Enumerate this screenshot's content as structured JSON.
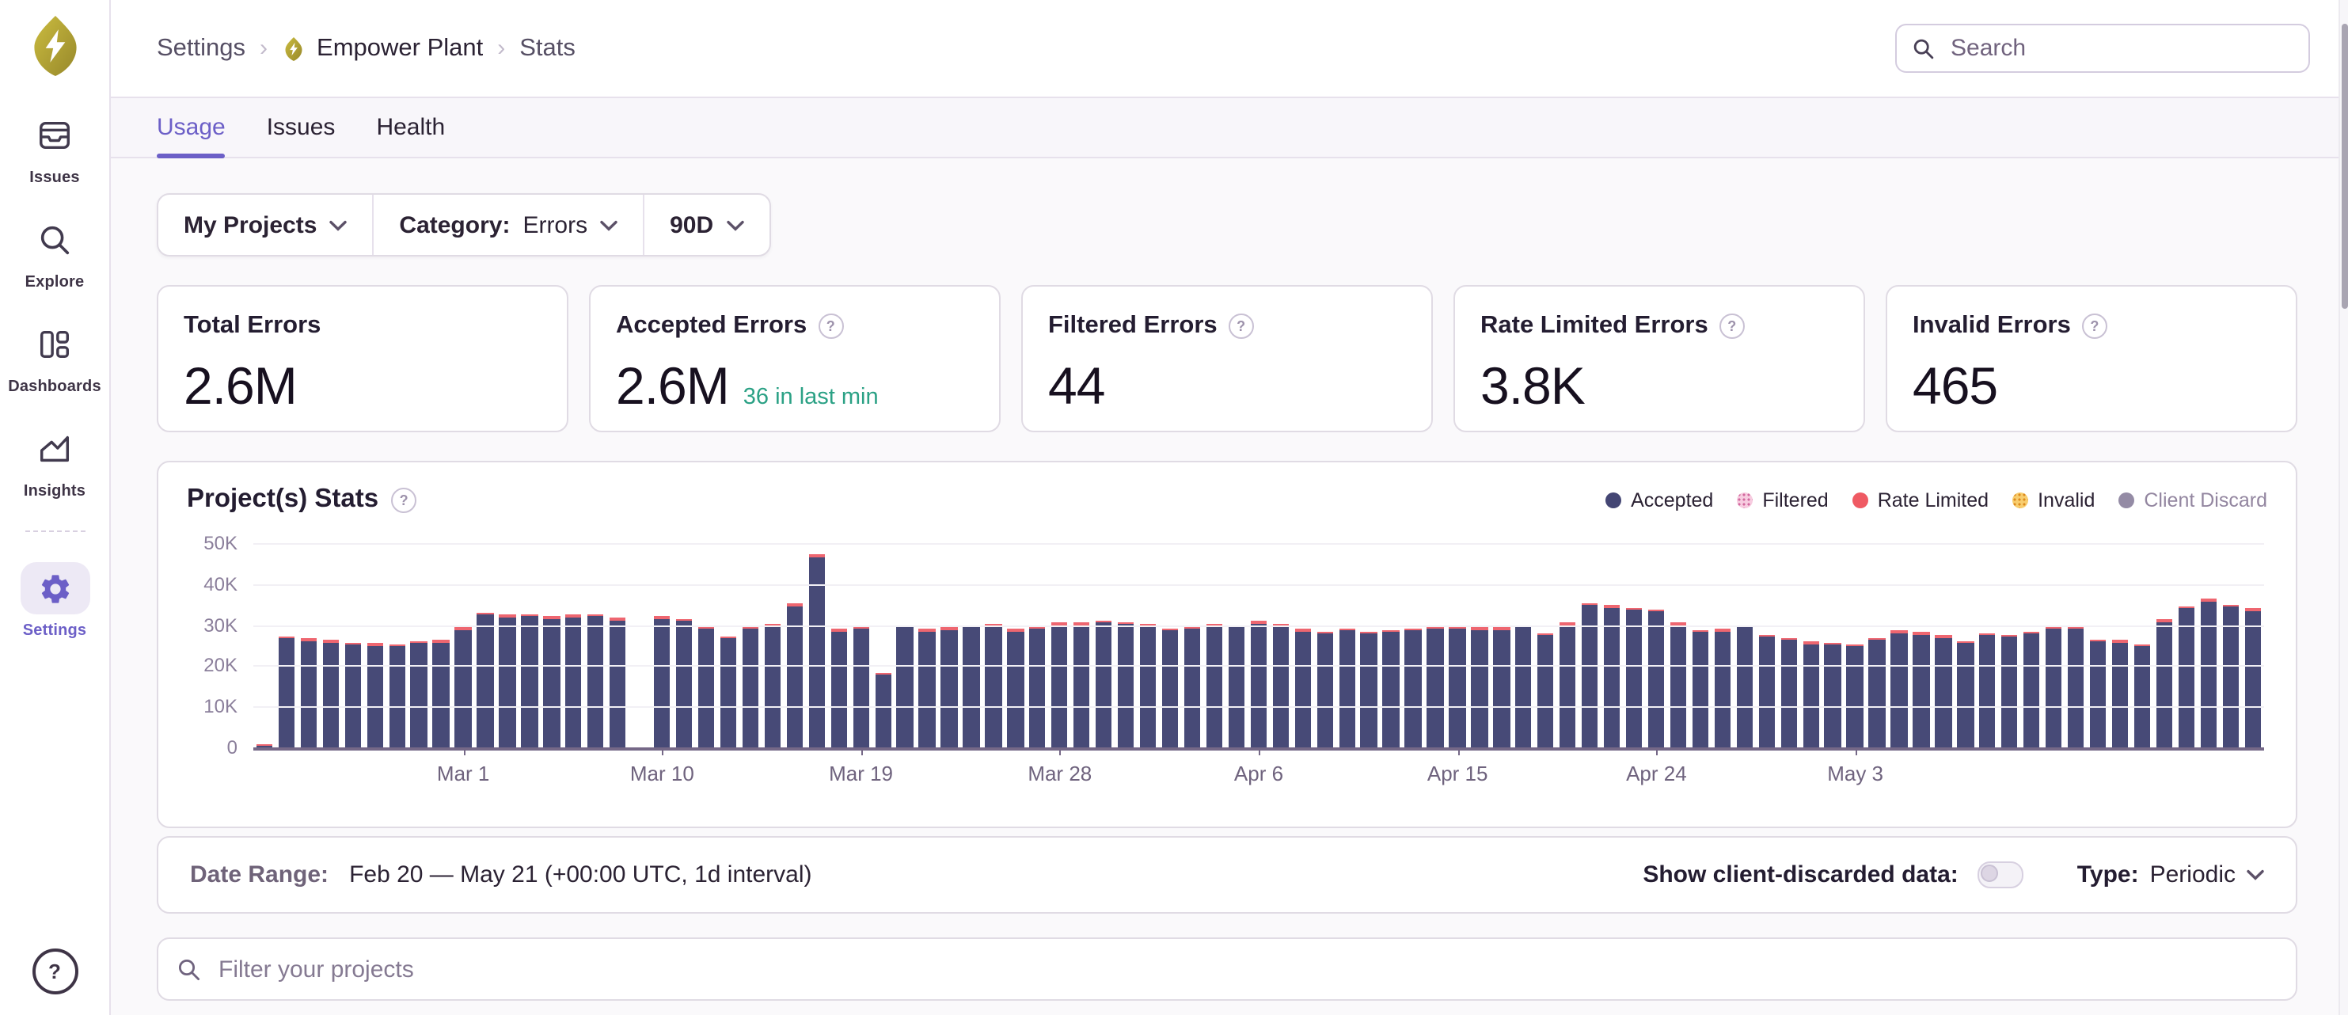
{
  "sidebar": {
    "items": [
      {
        "label": "Issues",
        "icon": "issues-icon",
        "active": false
      },
      {
        "label": "Explore",
        "icon": "search-icon",
        "active": false
      },
      {
        "label": "Dashboards",
        "icon": "dashboards-icon",
        "active": false
      },
      {
        "label": "Insights",
        "icon": "insights-icon",
        "active": false
      },
      {
        "label": "Settings",
        "icon": "gear-icon",
        "active": true
      }
    ],
    "help": "?"
  },
  "header": {
    "breadcrumb": {
      "settings": "Settings",
      "org": "Empower Plant",
      "page": "Stats"
    },
    "search_placeholder": "Search"
  },
  "tabs": [
    {
      "label": "Usage",
      "active": true
    },
    {
      "label": "Issues",
      "active": false
    },
    {
      "label": "Health",
      "active": false
    }
  ],
  "filters": {
    "projects": "My Projects",
    "category_label": "Category:",
    "category_value": "Errors",
    "period": "90D"
  },
  "stat_cards": [
    {
      "title": "Total Errors",
      "value": "2.6M",
      "sub": "",
      "help": false
    },
    {
      "title": "Accepted Errors",
      "value": "2.6M",
      "sub": "36 in last min",
      "help": true
    },
    {
      "title": "Filtered Errors",
      "value": "44",
      "sub": "",
      "help": true
    },
    {
      "title": "Rate Limited Errors",
      "value": "3.8K",
      "sub": "",
      "help": true
    },
    {
      "title": "Invalid Errors",
      "value": "465",
      "sub": "",
      "help": true
    }
  ],
  "chart": {
    "title": "Project(s) Stats",
    "legend": [
      {
        "label": "Accepted",
        "color": "#444674",
        "pattern": null,
        "disabled": false
      },
      {
        "label": "Filtered",
        "color": "#F7CCE0",
        "pattern": "#D2679E",
        "disabled": false
      },
      {
        "label": "Rate Limited",
        "color": "#EF5A63",
        "pattern": null,
        "disabled": false
      },
      {
        "label": "Invalid",
        "color": "#F8CD6E",
        "pattern": "#DD8A1E",
        "disabled": false
      },
      {
        "label": "Client Discard",
        "color": "#948BA5",
        "pattern": null,
        "disabled": true
      }
    ]
  },
  "chart_data": {
    "type": "bar",
    "stacked": true,
    "title": "Project(s) Stats",
    "values_unit": "thousands",
    "ylim": [
      0,
      51.5
    ],
    "y_ticks": [
      {
        "v": 0,
        "label": "0"
      },
      {
        "v": 10,
        "label": "10K"
      },
      {
        "v": 20,
        "label": "20K"
      },
      {
        "v": 30,
        "label": "30K"
      },
      {
        "v": 40,
        "label": "40K"
      },
      {
        "v": 50,
        "label": "50K"
      }
    ],
    "x": [
      "Feb 20",
      "Feb 21",
      "Feb 22",
      "Feb 23",
      "Feb 24",
      "Feb 25",
      "Feb 26",
      "Feb 27",
      "Feb 28",
      "Mar 1",
      "Mar 2",
      "Mar 3",
      "Mar 4",
      "Mar 5",
      "Mar 6",
      "Mar 7",
      "Mar 8",
      "Mar 9",
      "Mar 10",
      "Mar 11",
      "Mar 12",
      "Mar 13",
      "Mar 14",
      "Mar 15",
      "Mar 16",
      "Mar 17",
      "Mar 18",
      "Mar 19",
      "Mar 20",
      "Mar 21",
      "Mar 22",
      "Mar 23",
      "Mar 24",
      "Mar 25",
      "Mar 26",
      "Mar 27",
      "Mar 28",
      "Mar 29",
      "Mar 30",
      "Mar 31",
      "Apr 1",
      "Apr 2",
      "Apr 3",
      "Apr 4",
      "Apr 5",
      "Apr 6",
      "Apr 7",
      "Apr 8",
      "Apr 9",
      "Apr 10",
      "Apr 11",
      "Apr 12",
      "Apr 13",
      "Apr 14",
      "Apr 15",
      "Apr 16",
      "Apr 17",
      "Apr 18",
      "Apr 19",
      "Apr 20",
      "Apr 21",
      "Apr 22",
      "Apr 23",
      "Apr 24",
      "Apr 25",
      "Apr 26",
      "Apr 27",
      "Apr 28",
      "Apr 29",
      "Apr 30",
      "May 1",
      "May 2",
      "May 3",
      "May 4",
      "May 5",
      "May 6",
      "May 7",
      "May 8",
      "May 9",
      "May 10",
      "May 11",
      "May 12",
      "May 13",
      "May 14",
      "May 15",
      "May 16",
      "May 17",
      "May 18",
      "May 19",
      "May 20",
      "May 21"
    ],
    "x_tick_indices": [
      9,
      18,
      27,
      36,
      45,
      54,
      63,
      72
    ],
    "x_tick_labels": [
      "Mar 1",
      "Mar 10",
      "Mar 19",
      "Mar 28",
      "Apr 6",
      "Apr 15",
      "Apr 24",
      "May 3"
    ],
    "series": [
      {
        "name": "Accepted",
        "color": "#474A77",
        "values": [
          0.2,
          26.6,
          26.0,
          25.6,
          25.0,
          24.8,
          24.6,
          25.4,
          25.6,
          28.8,
          32.4,
          31.8,
          32.1,
          31.5,
          31.8,
          32.0,
          31.0,
          0,
          31.5,
          30.9,
          29.2,
          26.6,
          29.1,
          29.8,
          34.6,
          46.6,
          28.4,
          29.0,
          17.8,
          29.4,
          28.3,
          28.7,
          29.4,
          29.5,
          28.4,
          29.2,
          30.0,
          30.0,
          30.5,
          30.1,
          29.8,
          28.6,
          29.2,
          29.5,
          29.4,
          30.3,
          29.7,
          28.4,
          27.7,
          28.6,
          27.7,
          28.2,
          28.6,
          29.0,
          29.0,
          28.8,
          28.8,
          29.4,
          27.4,
          30.0,
          34.8,
          34.2,
          33.6,
          33.2,
          30.0,
          28.2,
          28.4,
          29.4,
          27.0,
          26.3,
          25.3,
          25.1,
          24.7,
          26.3,
          28.0,
          27.6,
          26.8,
          25.5,
          27.4,
          27.0,
          27.8,
          29.0,
          29.2,
          25.8,
          25.6,
          24.6,
          30.6,
          33.9,
          35.7,
          34.3,
          33.5
        ]
      },
      {
        "name": "Rate Limited",
        "color": "#EE6670",
        "values": [
          0.4,
          0.4,
          0.3,
          0.4,
          0.4,
          0.3,
          0.4,
          0.4,
          0.4,
          0.5,
          0.4,
          0.4,
          0.4,
          0.4,
          0.5,
          0.4,
          0.4,
          0,
          0.4,
          0.4,
          0.3,
          0.4,
          0.4,
          0.4,
          0.5,
          0.5,
          0.4,
          0.4,
          0.4,
          0.3,
          0.4,
          0.4,
          0.4,
          0.4,
          0.3,
          0.4,
          0.5,
          0.4,
          0.4,
          0.4,
          0.4,
          0.3,
          0.4,
          0.4,
          0.5,
          0.4,
          0.4,
          0.3,
          0.4,
          0.4,
          0.3,
          0.4,
          0.4,
          0.4,
          0.4,
          0.4,
          0.5,
          0.4,
          0.3,
          0.4,
          0.5,
          0.4,
          0.4,
          0.4,
          0.4,
          0.3,
          0.4,
          0.4,
          0.3,
          0.4,
          0.4,
          0.3,
          0.4,
          0.4,
          0.4,
          0.3,
          0.4,
          0.4,
          0.4,
          0.3,
          0.4,
          0.4,
          0.4,
          0.3,
          0.4,
          0.3,
          0.5,
          0.4,
          0.5,
          0.4,
          0.4
        ]
      }
    ],
    "grid": true,
    "legend_position": "top-right"
  },
  "range_bar": {
    "label": "Date Range:",
    "value": "Feb 20 — May 21 (+00:00 UTC, 1d interval)",
    "toggle_label": "Show client-discarded data:",
    "toggle_on": false,
    "type_label": "Type:",
    "type_value": "Periodic"
  },
  "project_filter": {
    "placeholder": "Filter your projects"
  }
}
